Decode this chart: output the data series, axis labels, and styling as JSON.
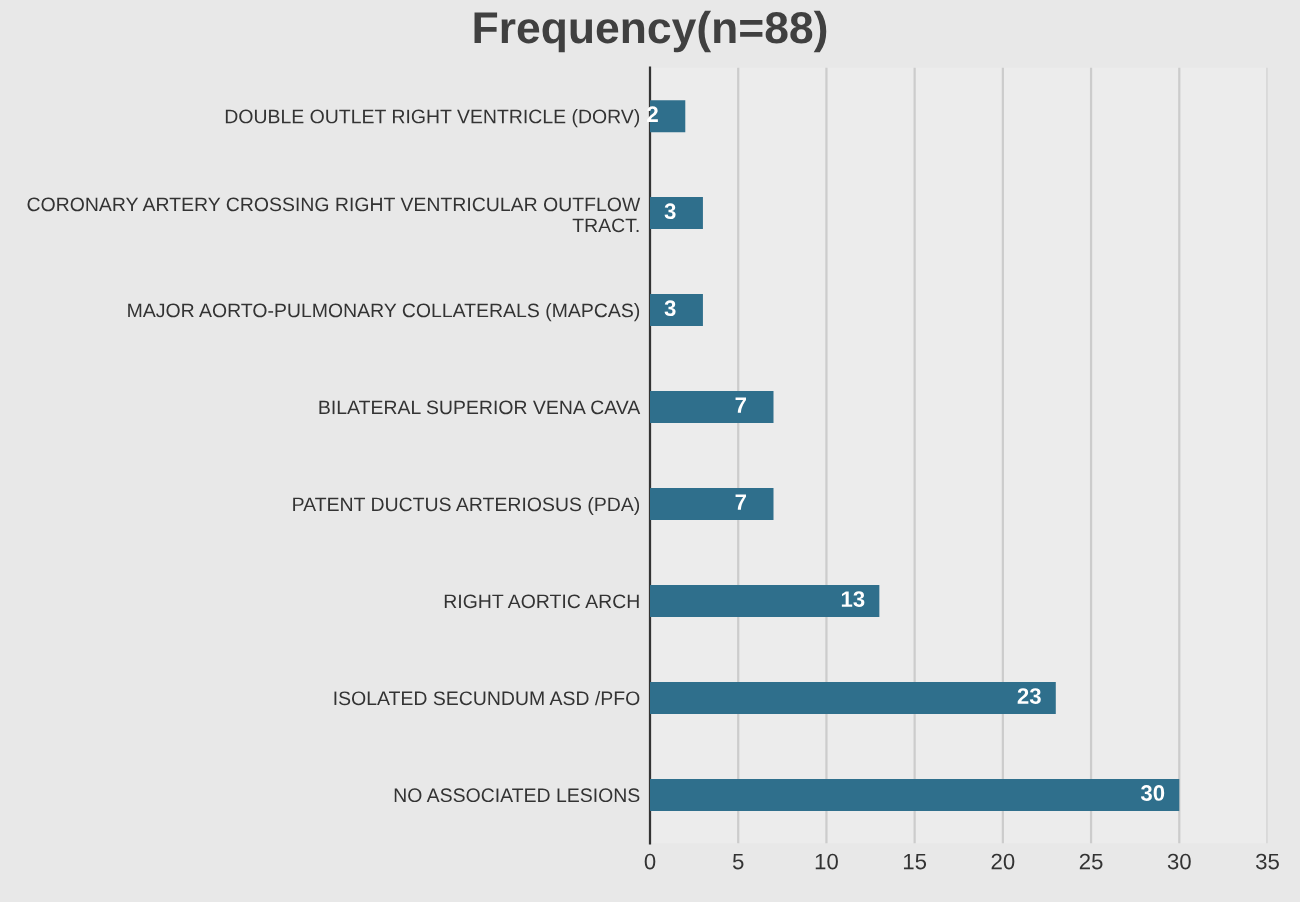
{
  "chart_data": {
    "type": "bar",
    "orientation": "horizontal",
    "title": "Frequency(n=88)",
    "categories": [
      "DOUBLE OUTLET RIGHT VENTRICLE (DORV)",
      "CORONARY ARTERY CROSSING RIGHT VENTRICULAR OUTFLOW\nTRACT.",
      "MAJOR AORTO-PULMONARY COLLATERALS (MAPCAS)",
      "BILATERAL SUPERIOR VENA CAVA",
      "PATENT DUCTUS ARTERIOSUS (PDA)",
      "RIGHT AORTIC ARCH",
      "ISOLATED SECUNDUM ASD /PFO",
      "NO ASSOCIATED LESIONS"
    ],
    "values": [
      2,
      3,
      3,
      7,
      7,
      13,
      23,
      30
    ],
    "color": "#2f6f8c",
    "xlim": [
      0,
      35
    ],
    "xticks": [
      0,
      5,
      10,
      15,
      20,
      25,
      30,
      35
    ],
    "grid": "x",
    "data_labels": true
  }
}
